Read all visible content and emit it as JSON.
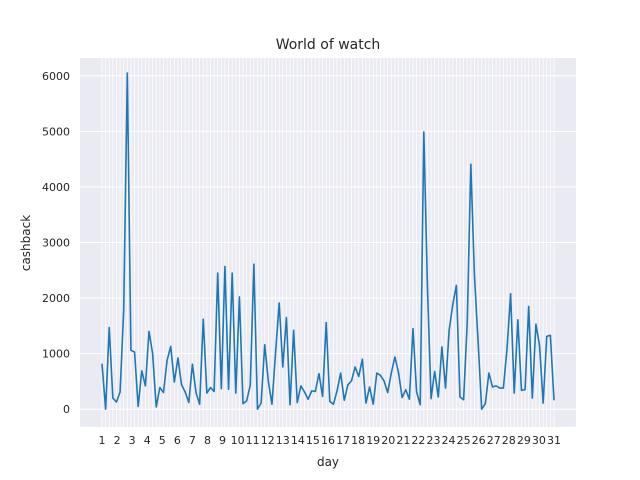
{
  "chart_data": {
    "type": "line",
    "title": "World of watch",
    "xlabel": "day",
    "ylabel": "cashback",
    "ylim": [
      -320,
      6320
    ],
    "yticks": [
      0,
      1000,
      2000,
      3000,
      4000,
      5000,
      6000
    ],
    "grid": true,
    "style": "seaborn-darkgrid",
    "colors": {
      "background": "#eaeaf2",
      "grid": "#ffffff",
      "line": "#1f77b4"
    },
    "x_tick_labels": [
      "1",
      "2",
      "3",
      "4",
      "5",
      "6",
      "7",
      "8",
      "9",
      "10",
      "11",
      "12",
      "13",
      "14",
      "15",
      "16",
      "17",
      "18",
      "19",
      "20",
      "21",
      "22",
      "23",
      "24",
      "25",
      "26",
      "27",
      "28",
      "29",
      "30",
      "31"
    ],
    "series": [
      {
        "values": [
          820,
          0,
          1470,
          200,
          130,
          310,
          1780,
          6050,
          1060,
          1030,
          50,
          690,
          420,
          1400,
          1000,
          40,
          390,
          300,
          880,
          1130,
          490,
          920,
          440,
          310,
          120,
          810,
          300,
          90,
          1620,
          290,
          390,
          320,
          2450,
          370,
          2570,
          360,
          2450,
          290,
          2020,
          100,
          150,
          430,
          2610,
          0,
          110,
          1160,
          500,
          90,
          1020,
          1910,
          760,
          1650,
          80,
          1420,
          120,
          420,
          310,
          180,
          330,
          320,
          640,
          230,
          1560,
          140,
          90,
          330,
          650,
          160,
          440,
          510,
          760,
          590,
          900,
          110,
          400,
          90,
          650,
          610,
          510,
          300,
          650,
          940,
          660,
          210,
          350,
          180,
          1450,
          310,
          80,
          4990,
          2200,
          190,
          680,
          220,
          1120,
          380,
          1420,
          1880,
          2230,
          220,
          170,
          1550,
          4410,
          2400,
          1230,
          0,
          100,
          650,
          400,
          420,
          380,
          380,
          1080,
          2080,
          290,
          1610,
          340,
          350,
          1850,
          200,
          1530,
          1150,
          110,
          1310,
          1330,
          160
        ]
      }
    ]
  }
}
